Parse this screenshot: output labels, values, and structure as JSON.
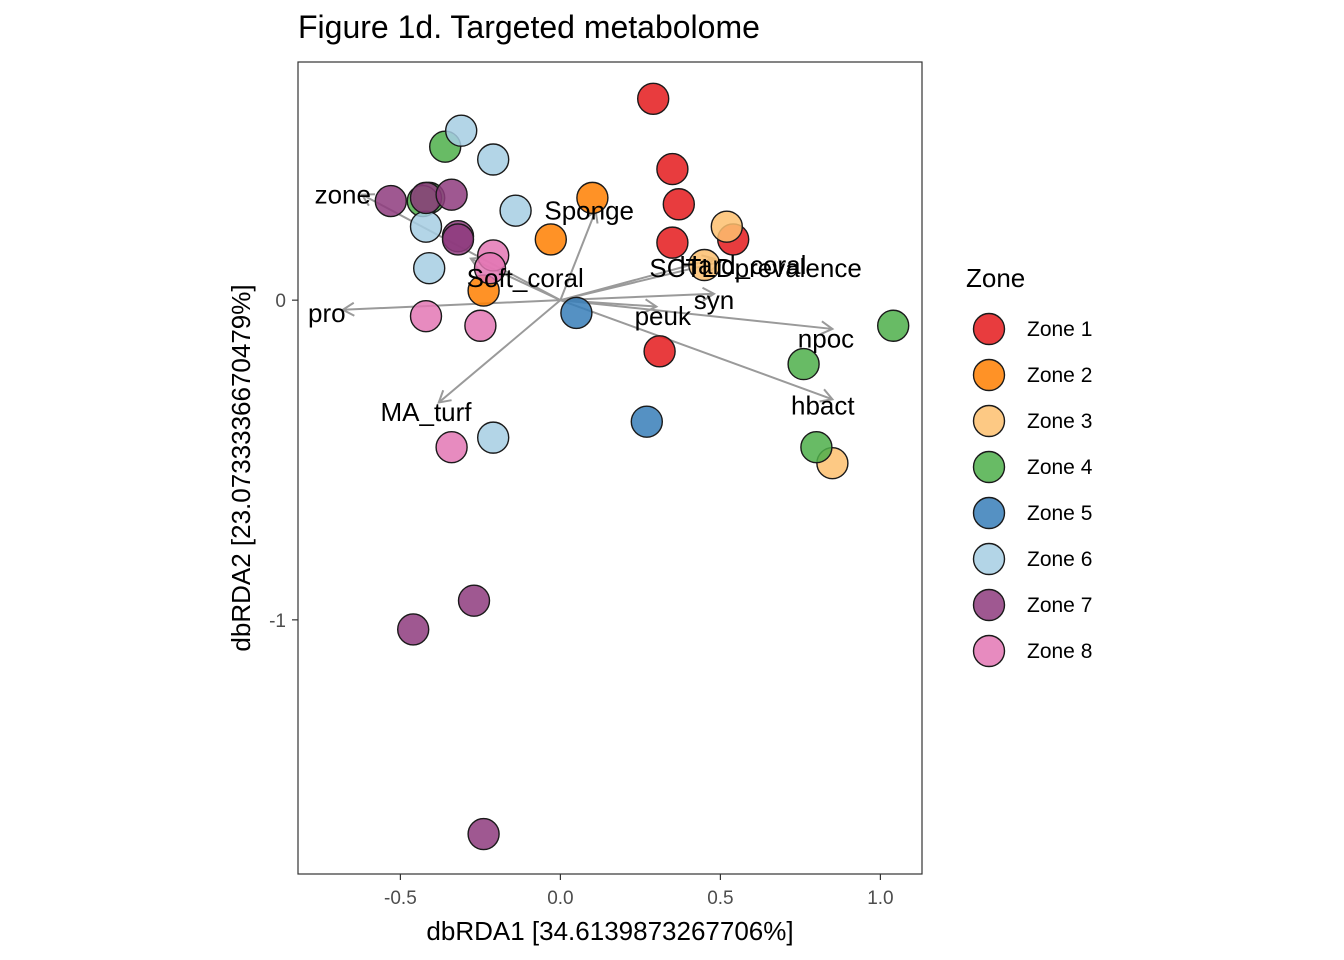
{
  "chart_data": {
    "type": "scatter",
    "title": "Figure 1d. Targeted metabolome",
    "xlabel": "dbRDA1 [34.6139873267706%]",
    "ylabel": "dbRDA2 [23.0733336670479%]",
    "xlim": [
      -0.82,
      1.13
    ],
    "ylim": [
      -1.795,
      0.745
    ],
    "x_ticks": [
      -0.5,
      0.0,
      0.5,
      1.0
    ],
    "x_tick_labels": [
      "-0.5",
      "0.0",
      "0.5",
      "1.0"
    ],
    "y_ticks": [
      0,
      -1
    ],
    "y_tick_labels": [
      "0",
      "-1"
    ],
    "grid": false,
    "legend": {
      "title": "Zone",
      "position": "right"
    },
    "series": [
      {
        "name": "Zone 1",
        "color": "#E41A1C",
        "points": [
          [
            0.29,
            0.63
          ],
          [
            0.35,
            0.41
          ],
          [
            0.37,
            0.3
          ],
          [
            0.35,
            0.18
          ],
          [
            0.54,
            0.19
          ],
          [
            0.31,
            -0.16
          ]
        ]
      },
      {
        "name": "Zone 2",
        "color": "#FF7F00",
        "points": [
          [
            0.1,
            0.32
          ],
          [
            -0.03,
            0.19
          ],
          [
            -0.24,
            0.03
          ]
        ]
      },
      {
        "name": "Zone 3",
        "color": "#FDBF6F",
        "points": [
          [
            0.52,
            0.23
          ],
          [
            0.45,
            0.11
          ],
          [
            0.85,
            -0.51
          ]
        ]
      },
      {
        "name": "Zone 4",
        "color": "#4DAF4A",
        "points": [
          [
            -0.36,
            0.48
          ],
          [
            -0.41,
            0.32
          ],
          [
            -0.43,
            0.31
          ],
          [
            1.04,
            -0.08
          ],
          [
            0.76,
            -0.2
          ],
          [
            0.8,
            -0.46
          ]
        ]
      },
      {
        "name": "Zone 5",
        "color": "#377EB8",
        "points": [
          [
            0.05,
            -0.04
          ],
          [
            0.27,
            -0.38
          ]
        ]
      },
      {
        "name": "Zone 6",
        "color": "#A6CEE3",
        "points": [
          [
            -0.31,
            0.53
          ],
          [
            -0.21,
            0.44
          ],
          [
            -0.14,
            0.28
          ],
          [
            -0.42,
            0.23
          ],
          [
            -0.41,
            0.1
          ],
          [
            -0.21,
            -0.43
          ]
        ]
      },
      {
        "name": "Zone 7",
        "color": "#8E3B7E",
        "points": [
          [
            -0.53,
            0.31
          ],
          [
            -0.42,
            0.32
          ],
          [
            -0.34,
            0.33
          ],
          [
            -0.32,
            0.2
          ],
          [
            -0.32,
            0.19
          ],
          [
            -0.27,
            -0.94
          ],
          [
            -0.46,
            -1.03
          ],
          [
            -0.24,
            -1.67
          ]
        ]
      },
      {
        "name": "Zone 8",
        "color": "#E377B4",
        "points": [
          [
            -0.21,
            0.14
          ],
          [
            -0.22,
            0.1
          ],
          [
            -0.42,
            -0.05
          ],
          [
            -0.25,
            -0.08
          ],
          [
            -0.34,
            -0.46
          ]
        ]
      }
    ],
    "vectors": [
      {
        "label": "zone",
        "x": -0.62,
        "y": 0.33,
        "label_x": -0.68,
        "label_y": 0.33
      },
      {
        "label": "Sponge",
        "x": 0.11,
        "y": 0.28,
        "label_x": 0.09,
        "label_y": 0.28
      },
      {
        "label": "Soft_coral",
        "x": -0.28,
        "y": 0.13,
        "label_x": -0.11,
        "label_y": 0.07
      },
      {
        "label": "SCTLDprevalence",
        "x": 0.5,
        "y": 0.12,
        "label_x": 0.61,
        "label_y": 0.1
      },
      {
        "label": "Hard_coral",
        "x": 0.48,
        "y": 0.13,
        "label_x": 0.57,
        "label_y": 0.11
      },
      {
        "label": "syn",
        "x": 0.48,
        "y": 0.02,
        "label_x": 0.48,
        "label_y": 0.0
      },
      {
        "label": "peuk",
        "x": 0.3,
        "y": -0.02,
        "label_x": 0.32,
        "label_y": -0.05
      },
      {
        "label": "pro",
        "x": -0.68,
        "y": -0.03,
        "label_x": -0.73,
        "label_y": -0.04
      },
      {
        "label": "npoc",
        "x": 0.85,
        "y": -0.09,
        "label_x": 0.83,
        "label_y": -0.12
      },
      {
        "label": "MA_turf",
        "x": -0.38,
        "y": -0.32,
        "label_x": -0.42,
        "label_y": -0.35
      },
      {
        "label": "hbact",
        "x": 0.85,
        "y": -0.31,
        "label_x": 0.82,
        "label_y": -0.33
      }
    ]
  }
}
